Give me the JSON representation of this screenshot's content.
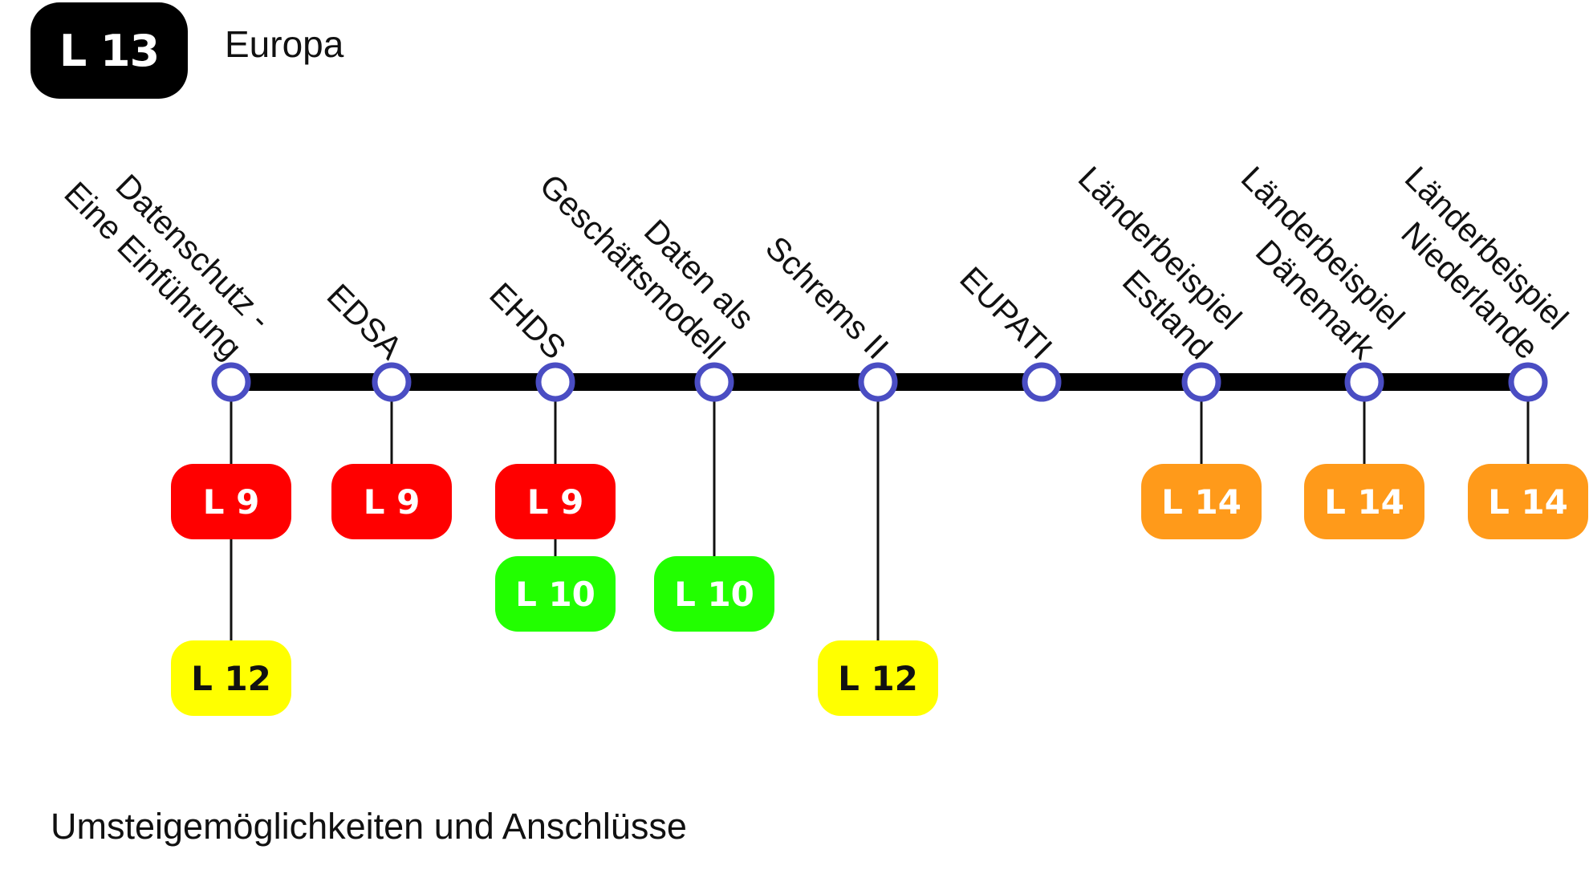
{
  "header": {
    "line_badge": "L 13",
    "line_name": "Europa"
  },
  "colors": {
    "main_line": "#000000",
    "stop_ring": "#4a4dc3",
    "L 9": "#ff0000",
    "L 10": "#22ff00",
    "L 12": "#ffff00",
    "L 14": "#ff9a1a"
  },
  "stations": [
    {
      "lines": [
        "Datenschutz -",
        "Eine Einführung"
      ],
      "connections": [
        "L 9",
        "L 12"
      ]
    },
    {
      "lines": [
        "EDSA"
      ],
      "connections": [
        "L 9"
      ]
    },
    {
      "lines": [
        "EHDS"
      ],
      "connections": [
        "L 9",
        "L 10"
      ]
    },
    {
      "lines": [
        "Daten als",
        "Geschäftsmodell"
      ],
      "connections": [
        "L 10"
      ]
    },
    {
      "lines": [
        "Schrems II"
      ],
      "connections": [
        "L 12"
      ]
    },
    {
      "lines": [
        "EUPATI"
      ],
      "connections": []
    },
    {
      "lines": [
        "Länderbeispiel",
        "Estland"
      ],
      "connections": [
        "L 14"
      ]
    },
    {
      "lines": [
        "Länderbeispiel",
        "Dänemark"
      ],
      "connections": [
        "L 14"
      ]
    },
    {
      "lines": [
        "Länderbeispiel",
        "Niederlande"
      ],
      "connections": [
        "L 14"
      ]
    }
  ],
  "footer": {
    "caption": "Umsteigemöglichkeiten und Anschlüsse"
  }
}
